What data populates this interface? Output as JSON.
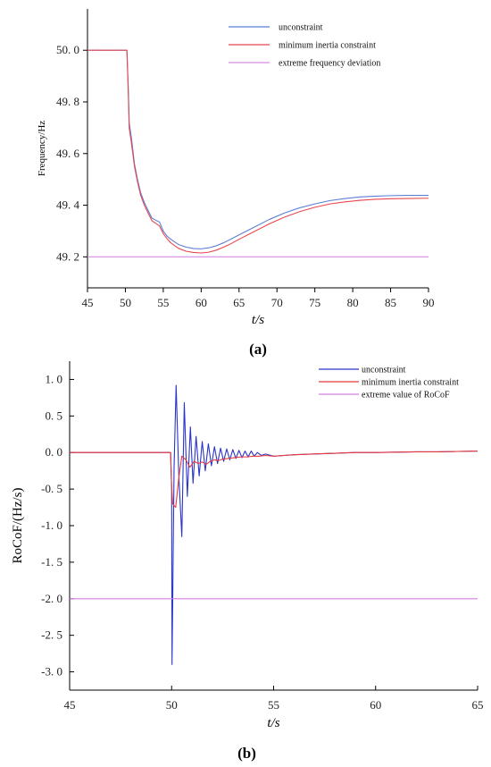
{
  "chart_data": [
    {
      "type": "line",
      "caption": "(a)",
      "ylabel": "Frequency/Hz",
      "xlabel": "t/s",
      "xlim": [
        45,
        90
      ],
      "ylim": [
        49.08,
        50.16
      ],
      "xticks": [
        "45",
        "50",
        "55",
        "60",
        "65",
        "70",
        "75",
        "80",
        "85",
        "90"
      ],
      "yticks": [
        "49. 2",
        "49. 4",
        "49. 6",
        "49. 8",
        "50. 0"
      ],
      "ytick_values": [
        49.2,
        49.4,
        49.6,
        49.8,
        50.0
      ],
      "legend_position": "top-right",
      "series": [
        {
          "name": "unconstraint",
          "color": "#5b7fd6",
          "x": [
            45,
            50.2,
            50.4,
            50.5,
            50.8,
            51.2,
            51.6,
            52,
            52.5,
            53,
            53.5,
            54,
            54.5,
            55,
            55.5,
            56,
            57,
            58,
            59,
            60,
            61,
            62,
            63,
            64,
            65,
            67,
            69,
            71,
            73,
            75,
            77,
            79,
            81,
            83,
            85,
            87,
            90
          ],
          "y": [
            50.0,
            50.0,
            49.84,
            49.72,
            49.66,
            49.56,
            49.5,
            49.45,
            49.41,
            49.38,
            49.35,
            49.342,
            49.335,
            49.3,
            49.28,
            49.268,
            49.248,
            49.238,
            49.232,
            49.231,
            49.235,
            49.243,
            49.255,
            49.27,
            49.285,
            49.315,
            49.345,
            49.37,
            49.39,
            49.405,
            49.418,
            49.426,
            49.432,
            49.435,
            49.437,
            49.438,
            49.438
          ]
        },
        {
          "name": "minimum inertia constraint",
          "color": "#e8474f",
          "x": [
            45,
            50.2,
            50.4,
            50.5,
            50.8,
            51.2,
            51.6,
            52,
            52.5,
            53,
            53.5,
            54,
            54.5,
            55,
            55.5,
            56,
            57,
            58,
            59,
            60,
            61,
            62,
            63,
            64,
            65,
            67,
            69,
            71,
            73,
            75,
            77,
            79,
            81,
            83,
            85,
            87,
            90
          ],
          "y": [
            50.0,
            50.0,
            49.82,
            49.7,
            49.64,
            49.55,
            49.49,
            49.44,
            49.4,
            49.37,
            49.34,
            49.33,
            49.32,
            49.29,
            49.27,
            49.254,
            49.233,
            49.222,
            49.217,
            49.215,
            49.218,
            49.226,
            49.238,
            49.252,
            49.268,
            49.298,
            49.328,
            49.354,
            49.375,
            49.392,
            49.405,
            49.413,
            49.419,
            49.423,
            49.425,
            49.426,
            49.427
          ]
        },
        {
          "name": "extreme frequency deviation",
          "color": "#d68ae0",
          "x": [
            45,
            90
          ],
          "y": [
            49.2,
            49.2
          ]
        }
      ]
    },
    {
      "type": "line",
      "caption": "(b)",
      "ylabel": "RoCoF/(Hz/s)",
      "xlabel": "t/s",
      "xlim": [
        45,
        65
      ],
      "ylim": [
        -3.25,
        1.25
      ],
      "xticks": [
        "45",
        "50",
        "55",
        "60",
        "65"
      ],
      "yticks": [
        "1. 0",
        "0. 5",
        "0. 0",
        "-0. 5",
        "-1. 0",
        "-1. 5",
        "-2. 0",
        "-2. 5",
        "-3. 0"
      ],
      "ytick_values": [
        1.0,
        0.5,
        0.0,
        -0.5,
        -1.0,
        -1.5,
        -2.0,
        -2.5,
        -3.0
      ],
      "legend_position": "top-right",
      "series": [
        {
          "name": "unconstraint",
          "color": "#2b35c9",
          "x": [
            45,
            49.95,
            50.0,
            50.02,
            50.12,
            50.22,
            50.35,
            50.5,
            50.62,
            50.77,
            50.92,
            51.05,
            51.2,
            51.35,
            51.5,
            51.65,
            51.8,
            51.95,
            52.1,
            52.25,
            52.4,
            52.55,
            52.7,
            52.85,
            53.0,
            53.15,
            53.3,
            53.45,
            53.6,
            53.75,
            53.9,
            54.05,
            54.2,
            54.4,
            54.6,
            55,
            55.5,
            56,
            57,
            58,
            59,
            60,
            61,
            62,
            63,
            64,
            65
          ],
          "y": [
            0.0,
            0.0,
            -0.5,
            -2.9,
            -0.2,
            0.92,
            -0.3,
            -1.15,
            0.68,
            -0.6,
            0.35,
            -0.42,
            0.22,
            -0.32,
            0.15,
            -0.25,
            0.12,
            -0.18,
            0.08,
            -0.15,
            0.06,
            -0.12,
            0.05,
            -0.1,
            0.04,
            -0.08,
            0.03,
            -0.07,
            0.02,
            -0.06,
            0.02,
            -0.05,
            0.0,
            -0.04,
            -0.02,
            -0.05,
            -0.04,
            -0.03,
            -0.02,
            -0.01,
            0.0,
            0.0,
            0.005,
            0.01,
            0.01,
            0.015,
            0.02
          ]
        },
        {
          "name": "minimum inertia constraint",
          "color": "#e83a3a",
          "x": [
            45,
            49.95,
            50.0,
            50.05,
            50.2,
            50.35,
            50.5,
            50.7,
            50.9,
            51.1,
            51.3,
            51.5,
            51.7,
            51.9,
            52.1,
            52.3,
            52.5,
            52.8,
            53.1,
            53.4,
            53.7,
            54.0,
            54.3,
            54.6,
            55,
            55.5,
            56,
            57,
            58,
            59,
            60,
            61,
            62,
            63,
            64,
            65
          ],
          "y": [
            0.0,
            0.0,
            -0.45,
            -0.7,
            -0.75,
            -0.35,
            -0.05,
            -0.1,
            -0.2,
            -0.12,
            -0.15,
            -0.13,
            -0.16,
            -0.12,
            -0.1,
            -0.11,
            -0.09,
            -0.08,
            -0.07,
            -0.06,
            -0.06,
            -0.05,
            -0.05,
            -0.04,
            -0.05,
            -0.04,
            -0.03,
            -0.02,
            -0.01,
            0.0,
            0.0,
            0.005,
            0.01,
            0.01,
            0.015,
            0.02
          ]
        },
        {
          "name": "extreme value of RoCoF",
          "color": "#d47ee0",
          "x": [
            45,
            65
          ],
          "y": [
            -2.0,
            -2.0
          ]
        }
      ]
    }
  ]
}
